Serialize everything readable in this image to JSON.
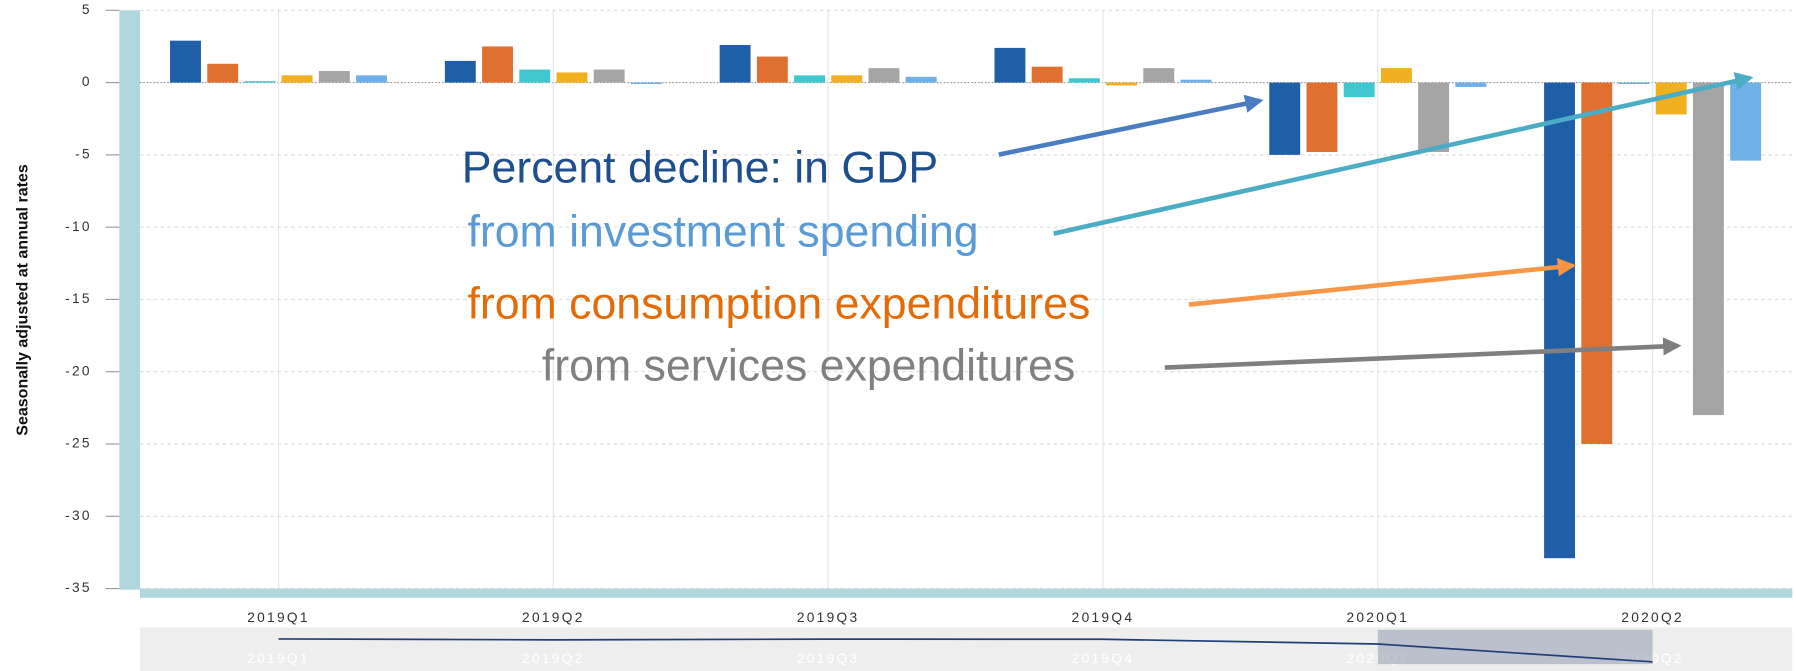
{
  "chart_data": {
    "type": "bar",
    "ylabel": "Seasonally adjusted at annual rates",
    "categories": [
      "2019Q1",
      "2019Q2",
      "2019Q3",
      "2019Q4",
      "2020Q1",
      "2020Q2"
    ],
    "series": [
      {
        "color": "#1f5fa8",
        "values": [
          2.9,
          1.5,
          2.6,
          2.4,
          -5.0,
          -32.9
        ]
      },
      {
        "color": "#e07030",
        "values": [
          1.3,
          2.5,
          1.8,
          1.1,
          -4.8,
          -25.0
        ]
      },
      {
        "color": "#40c8d0",
        "values": [
          0.1,
          0.9,
          0.5,
          0.3,
          -1.0,
          -0.1
        ]
      },
      {
        "color": "#f0b020",
        "values": [
          0.5,
          0.7,
          0.5,
          -0.2,
          1.0,
          -2.2
        ]
      },
      {
        "color": "#a5a5a5",
        "values": [
          0.8,
          0.9,
          1.0,
          1.0,
          -4.8,
          -23.0
        ]
      },
      {
        "color": "#70b0e8",
        "values": [
          0.5,
          -0.1,
          0.4,
          0.2,
          -0.3,
          -5.4
        ]
      }
    ],
    "ylim": [
      -35,
      5
    ],
    "yticks": [
      -35,
      -30,
      -25,
      -20,
      -15,
      -10,
      -5,
      0,
      5
    ],
    "grid": true,
    "annotations": [
      {
        "text": "Percent decline: in GDP",
        "color": "#1f4e8c"
      },
      {
        "text": "from investment spending",
        "color": "#5b9bd5"
      },
      {
        "text": "from consumption expenditures",
        "color": "#e36c0a"
      },
      {
        "text": "from services expenditures",
        "color": "#808080"
      }
    ]
  }
}
